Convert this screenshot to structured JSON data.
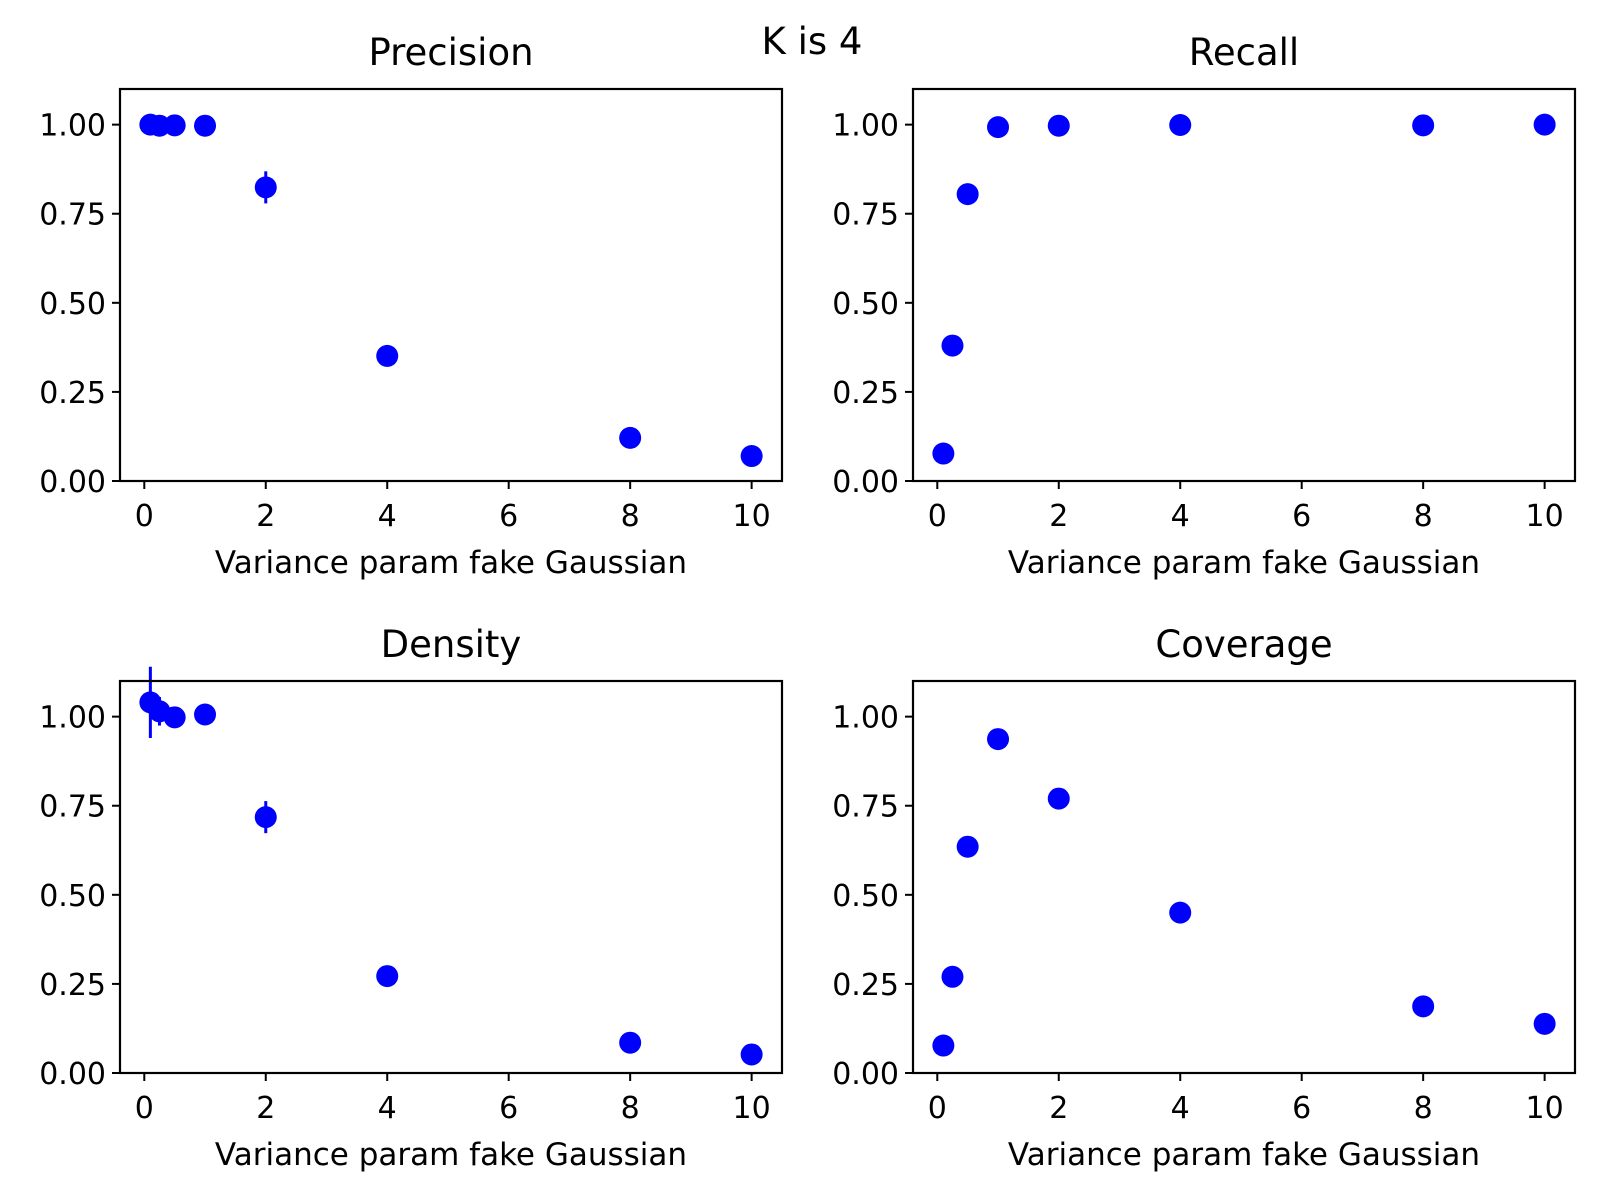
{
  "figure": {
    "suptitle": "K is 4",
    "marker_color": "#0000ff"
  },
  "chart_data": [
    {
      "type": "scatter",
      "title": "Precision",
      "xlabel": "Variance param fake Gaussian",
      "ylabel": "",
      "xlim": [
        -0.4,
        10.5
      ],
      "ylim": [
        0.0,
        1.1
      ],
      "xticks": [
        0,
        2,
        4,
        6,
        8,
        10
      ],
      "xtick_labels": [
        "0",
        "2",
        "4",
        "6",
        "8",
        "10"
      ],
      "yticks": [
        0.0,
        0.25,
        0.5,
        0.75,
        1.0
      ],
      "ytick_labels": [
        "0.00",
        "0.25",
        "0.50",
        "0.75",
        "1.00"
      ],
      "grid": false,
      "points": [
        {
          "x": 0.1,
          "y": 1.0,
          "yerr": 0.005
        },
        {
          "x": 0.25,
          "y": 0.997,
          "yerr": 0.005
        },
        {
          "x": 0.5,
          "y": 0.998,
          "yerr": 0.005
        },
        {
          "x": 1,
          "y": 0.997,
          "yerr": 0.005
        },
        {
          "x": 2,
          "y": 0.824,
          "yerr": 0.045
        },
        {
          "x": 4,
          "y": 0.351,
          "yerr": 0.008
        },
        {
          "x": 8,
          "y": 0.121,
          "yerr": 0.005
        },
        {
          "x": 10,
          "y": 0.07,
          "yerr": 0.005
        }
      ]
    },
    {
      "type": "scatter",
      "title": "Recall",
      "xlabel": "Variance param fake Gaussian",
      "ylabel": "",
      "xlim": [
        -0.4,
        10.5
      ],
      "ylim": [
        0.0,
        1.1
      ],
      "xticks": [
        0,
        2,
        4,
        6,
        8,
        10
      ],
      "xtick_labels": [
        "0",
        "2",
        "4",
        "6",
        "8",
        "10"
      ],
      "yticks": [
        0.0,
        0.25,
        0.5,
        0.75,
        1.0
      ],
      "ytick_labels": [
        "0.00",
        "0.25",
        "0.50",
        "0.75",
        "1.00"
      ],
      "grid": false,
      "points": [
        {
          "x": 0.1,
          "y": 0.077,
          "yerr": 0.005
        },
        {
          "x": 0.25,
          "y": 0.38,
          "yerr": 0.005
        },
        {
          "x": 0.5,
          "y": 0.805,
          "yerr": 0.005
        },
        {
          "x": 1,
          "y": 0.993,
          "yerr": 0.003
        },
        {
          "x": 2,
          "y": 0.997,
          "yerr": 0.003
        },
        {
          "x": 4,
          "y": 0.999,
          "yerr": 0.002
        },
        {
          "x": 8,
          "y": 0.998,
          "yerr": 0.002
        },
        {
          "x": 10,
          "y": 1.0,
          "yerr": 0.002
        }
      ]
    },
    {
      "type": "scatter",
      "title": "Density",
      "xlabel": "Variance param fake Gaussian",
      "ylabel": "",
      "xlim": [
        -0.4,
        10.5
      ],
      "ylim": [
        0.0,
        1.1
      ],
      "xticks": [
        0,
        2,
        4,
        6,
        8,
        10
      ],
      "xtick_labels": [
        "0",
        "2",
        "4",
        "6",
        "8",
        "10"
      ],
      "yticks": [
        0.0,
        0.25,
        0.5,
        0.75,
        1.0
      ],
      "ytick_labels": [
        "0.00",
        "0.25",
        "0.50",
        "0.75",
        "1.00"
      ],
      "grid": false,
      "points": [
        {
          "x": 0.1,
          "y": 1.04,
          "yerr": 0.1
        },
        {
          "x": 0.25,
          "y": 1.015,
          "yerr": 0.04
        },
        {
          "x": 0.5,
          "y": 0.998,
          "yerr": 0.01
        },
        {
          "x": 1,
          "y": 1.006,
          "yerr": 0.01
        },
        {
          "x": 2,
          "y": 0.718,
          "yerr": 0.045
        },
        {
          "x": 4,
          "y": 0.272,
          "yerr": 0.008
        },
        {
          "x": 8,
          "y": 0.085,
          "yerr": 0.005
        },
        {
          "x": 10,
          "y": 0.052,
          "yerr": 0.005
        }
      ]
    },
    {
      "type": "scatter",
      "title": "Coverage",
      "xlabel": "Variance param fake Gaussian",
      "ylabel": "",
      "xlim": [
        -0.4,
        10.5
      ],
      "ylim": [
        0.0,
        1.1
      ],
      "xticks": [
        0,
        2,
        4,
        6,
        8,
        10
      ],
      "xtick_labels": [
        "0",
        "2",
        "4",
        "6",
        "8",
        "10"
      ],
      "yticks": [
        0.0,
        0.25,
        0.5,
        0.75,
        1.0
      ],
      "ytick_labels": [
        "0.00",
        "0.25",
        "0.50",
        "0.75",
        "1.00"
      ],
      "grid": false,
      "points": [
        {
          "x": 0.1,
          "y": 0.077,
          "yerr": 0.005
        },
        {
          "x": 0.25,
          "y": 0.27,
          "yerr": 0.005
        },
        {
          "x": 0.5,
          "y": 0.635,
          "yerr": 0.005
        },
        {
          "x": 1,
          "y": 0.937,
          "yerr": 0.005
        },
        {
          "x": 2,
          "y": 0.77,
          "yerr": 0.005
        },
        {
          "x": 4,
          "y": 0.45,
          "yerr": 0.005
        },
        {
          "x": 8,
          "y": 0.187,
          "yerr": 0.005
        },
        {
          "x": 10,
          "y": 0.138,
          "yerr": 0.005
        }
      ]
    }
  ]
}
